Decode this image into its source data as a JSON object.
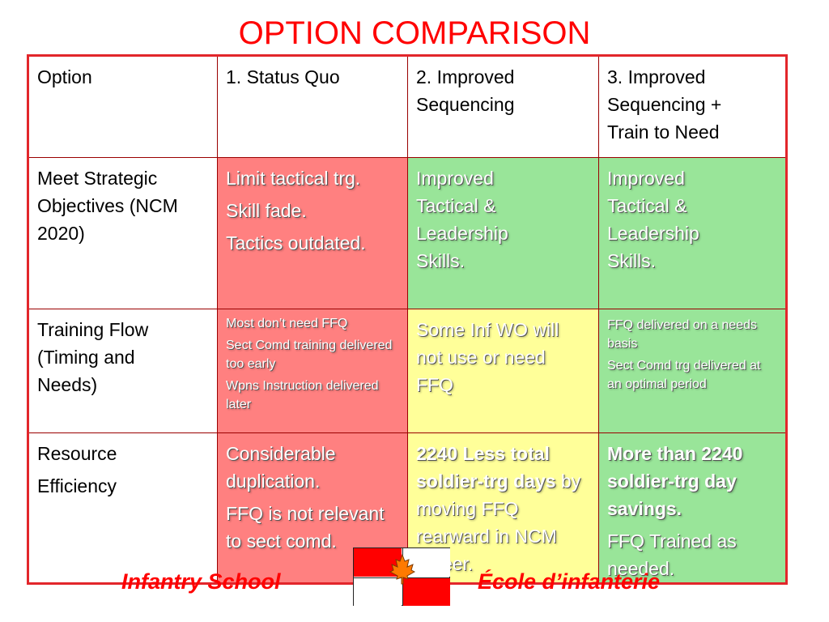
{
  "title": "OPTION COMPARISON",
  "table": {
    "headers": [
      "Option",
      "1. Status Quo",
      "2. Improved Sequencing",
      "3.  Improved Sequencing + Train to Need"
    ],
    "rows": [
      {
        "label": "Meet Strategic Objectives (NCM 2020)",
        "status_quo": [
          "Limit tactical trg.",
          "Skill fade.",
          "Tactics outdated."
        ],
        "improved": [
          "Improved Tactical & Leadership Skills."
        ],
        "train_to_need": [
          "Improved Tactical & Leadership Skills."
        ]
      },
      {
        "label": "Training Flow (Timing and Needs)",
        "status_quo": [
          "Most don’t need FFQ",
          "Sect Comd training delivered too early",
          "Wpns Instruction delivered later"
        ],
        "improved": [
          "Some Inf WO will not use or need FFQ"
        ],
        "train_to_need": [
          "FFQ delivered on a needs basis",
          "Sect Comd trg delivered at an optimal period"
        ]
      },
      {
        "label_lines": [
          "Resource",
          "Efficiency"
        ],
        "status_quo": [
          "Considerable duplication.",
          "FFQ is not relevant to sect comd."
        ],
        "improved_bold": "2240 Less total soldier-trg days",
        "improved_rest": " by moving FFQ rearward in NCM career.",
        "train_to_need": [
          "More than 2240 soldier-trg day savings.",
          "FFQ Trained as needed."
        ]
      }
    ]
  },
  "colors": {
    "title_red": "#ff0000",
    "status_quo_red": "#ff8080",
    "improved_green": "#99e599",
    "caution_yellow": "#ffff99",
    "border_red": "#e2262b"
  },
  "footer": {
    "left": "Infantry School",
    "right": "École d’infanterie",
    "emblem_icon": "maple-leaf-flag-icon"
  }
}
